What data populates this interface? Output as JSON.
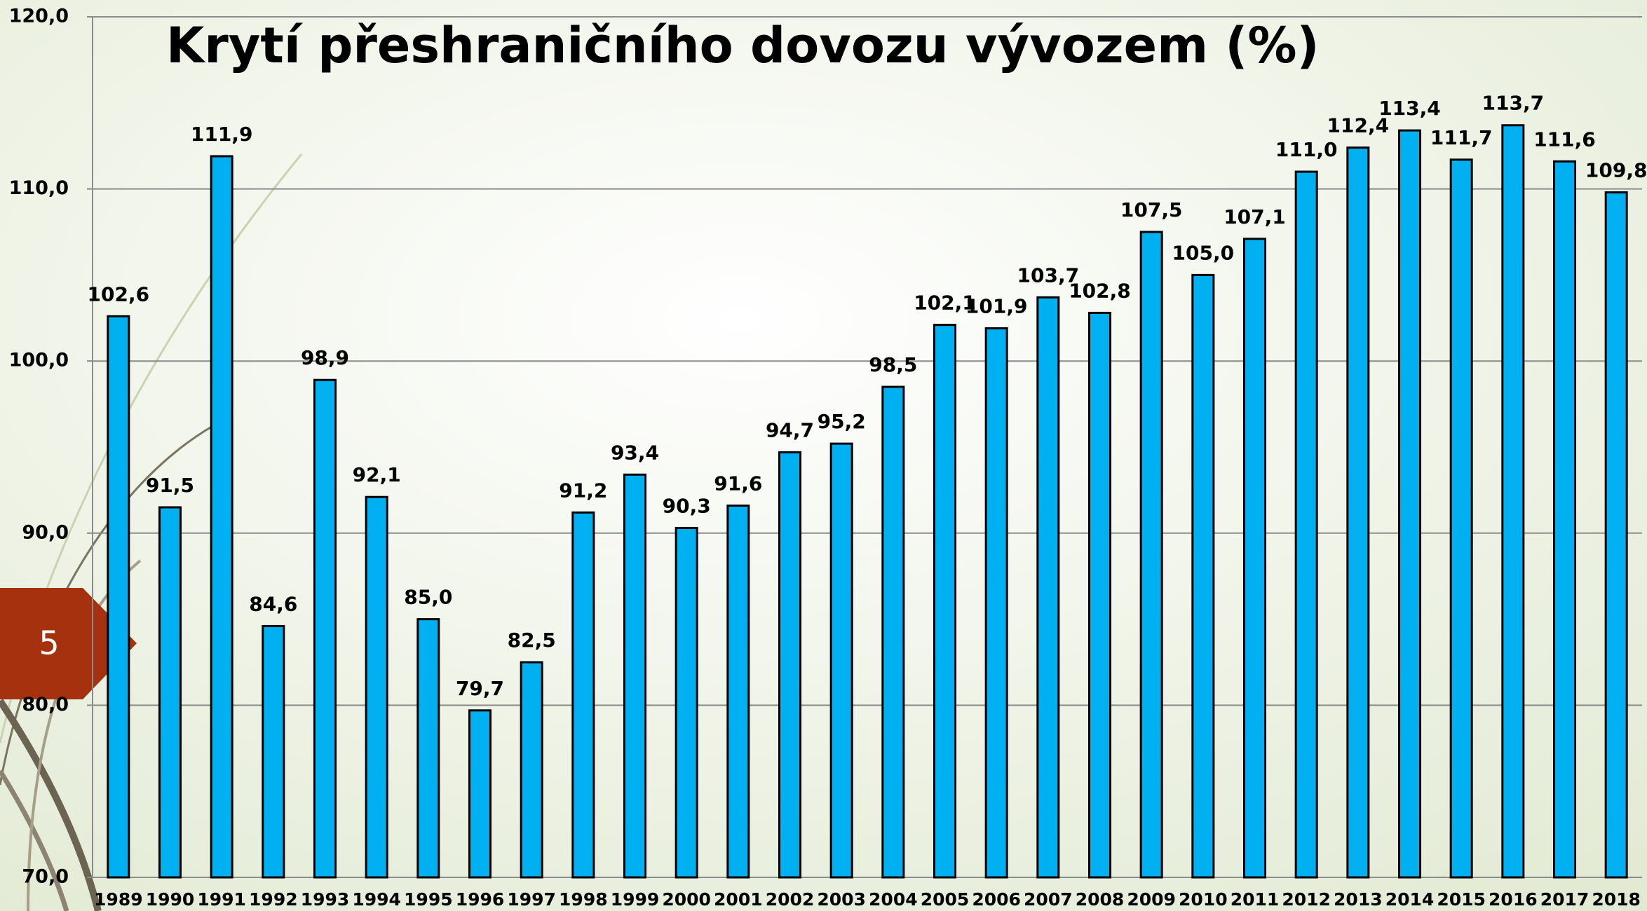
{
  "slide_number": "5",
  "chart_data": {
    "type": "bar",
    "title": "Krytí přeshraničního dovozu vývozem (%)",
    "categories": [
      "1989",
      "1990",
      "1991",
      "1992",
      "1993",
      "1994",
      "1995",
      "1996",
      "1997",
      "1998",
      "1999",
      "2000",
      "2001",
      "2002",
      "2003",
      "2004",
      "2005",
      "2006",
      "2007",
      "2008",
      "2009",
      "2010",
      "2011",
      "2012",
      "2013",
      "2014",
      "2015",
      "2016",
      "2017",
      "2018"
    ],
    "values": [
      102.6,
      91.5,
      111.9,
      84.6,
      98.9,
      92.1,
      85.0,
      79.7,
      82.5,
      91.2,
      93.4,
      90.3,
      91.6,
      94.7,
      95.2,
      98.5,
      102.1,
      101.9,
      103.7,
      102.8,
      107.5,
      105.0,
      107.1,
      111.0,
      112.4,
      113.4,
      111.7,
      113.7,
      111.6,
      109.8
    ],
    "value_labels": [
      "102,6",
      "91,5",
      "111,9",
      "84,6",
      "98,9",
      "92,1",
      "85,0",
      "79,7",
      "82,5",
      "91,2",
      "93,4",
      "90,3",
      "91,6",
      "94,7",
      "95,2",
      "98,5",
      "102,1",
      "101,9",
      "103,7",
      "102,8",
      "107,5",
      "105,0",
      "107,1",
      "111,0",
      "112,4",
      "113,4",
      "111,7",
      "113,7",
      "111,6",
      "109,8"
    ],
    "color": "#00b0f0",
    "ylim": [
      70,
      120
    ],
    "yticks": [
      {
        "value": 70,
        "label": "70,0"
      },
      {
        "value": 80,
        "label": "80,0"
      },
      {
        "value": 90,
        "label": "90,0"
      },
      {
        "value": 100,
        "label": "100,0"
      },
      {
        "value": 110,
        "label": "110,0"
      },
      {
        "value": 120,
        "label": "120,0"
      }
    ],
    "grid": true
  }
}
